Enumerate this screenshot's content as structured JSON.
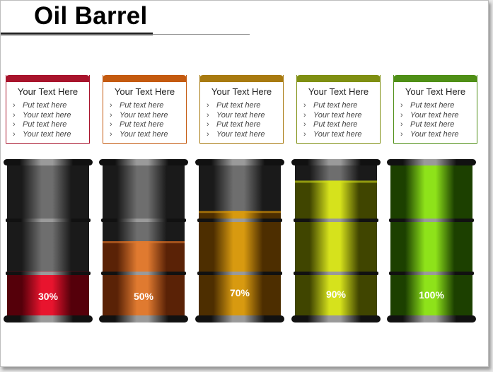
{
  "title": "Oil Barrel",
  "bullet_symbol": "›",
  "cards": [
    {
      "heading": "Your Text Here",
      "lines": [
        "Put text here",
        "Your text here",
        "Put text here",
        "Your text here"
      ],
      "color": "#a8142c"
    },
    {
      "heading": "Your Text Here",
      "lines": [
        "Put text here",
        "Your text here",
        "Put text here",
        "Your text here"
      ],
      "color": "#c45a0f"
    },
    {
      "heading": "Your Text Here",
      "lines": [
        "Put text here",
        "Your text here",
        "Put text here",
        "Your text here"
      ],
      "color": "#a87a10"
    },
    {
      "heading": "Your Text Here",
      "lines": [
        "Put text here",
        "Your text here",
        "Put text here",
        "Your text here"
      ],
      "color": "#7f8f12"
    },
    {
      "heading": "Your Text Here",
      "lines": [
        "Put text here",
        "Your text here",
        "Put text here",
        "Your text here"
      ],
      "color": "#4f8f16"
    }
  ],
  "barrels": [
    {
      "label": "30%",
      "fill": 0.3,
      "color_light": "#e8142e",
      "color_dark": "#55000a"
    },
    {
      "label": "50%",
      "fill": 0.5,
      "color_light": "#e07a30",
      "color_dark": "#5a2206"
    },
    {
      "label": "70%",
      "fill": 0.7,
      "color_light": "#d89a10",
      "color_dark": "#4d2e00"
    },
    {
      "label": "90%",
      "fill": 0.9,
      "color_light": "#d6e21c",
      "color_dark": "#404500"
    },
    {
      "label": "100%",
      "fill": 1.0,
      "color_light": "#8ee21a",
      "color_dark": "#1c4000"
    }
  ]
}
